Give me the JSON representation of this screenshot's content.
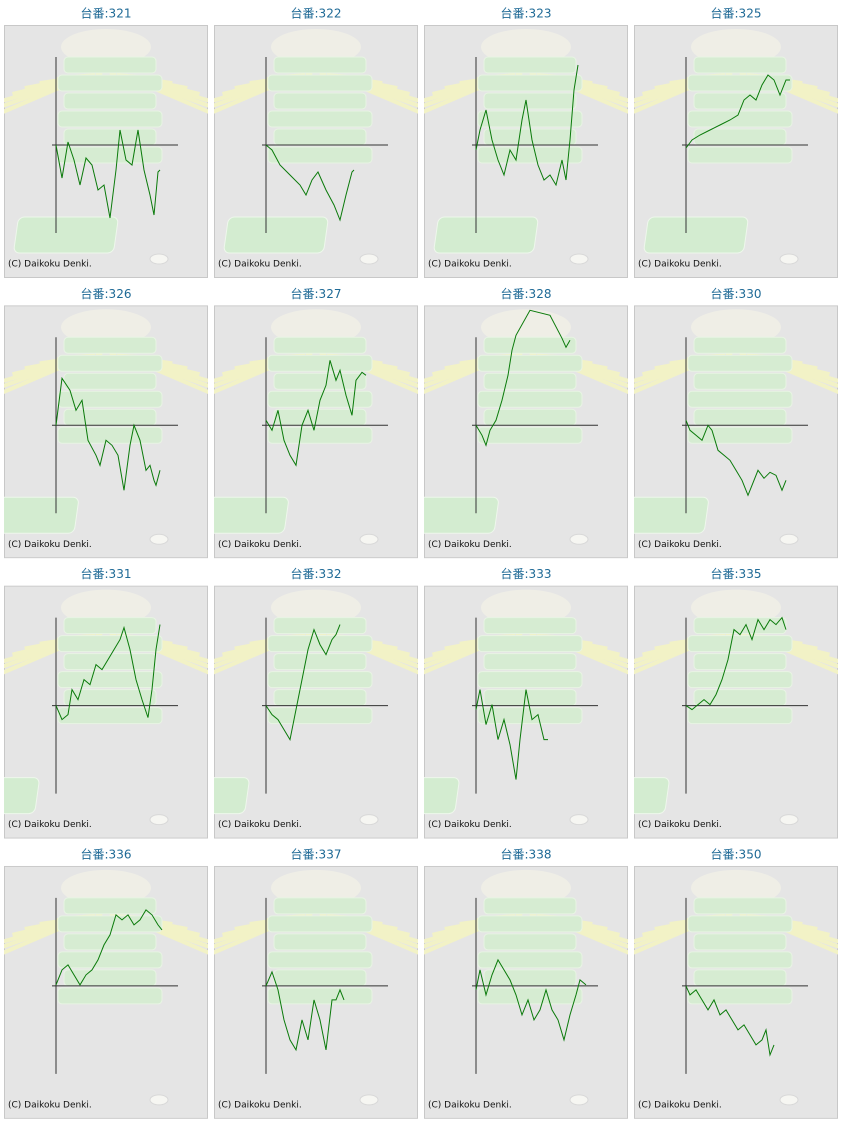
{
  "chart_data": [
    {
      "type": "line",
      "title": "台番:321",
      "note": "(C) Daikoku Denki.",
      "color": "#0a7a0a",
      "xlim": [
        0,
        122
      ],
      "ylim": [
        -88,
        88
      ],
      "x": [
        0,
        6,
        12,
        18,
        24,
        30,
        36,
        42,
        48,
        54,
        60,
        64,
        70,
        76,
        82,
        88,
        94,
        98,
        102,
        104
      ],
      "values": [
        0,
        -33,
        3,
        -15,
        -40,
        -13,
        -20,
        -45,
        -40,
        -73,
        -25,
        15,
        -15,
        -20,
        15,
        -25,
        -50,
        -70,
        -27,
        -25
      ]
    },
    {
      "type": "line",
      "title": "台番:322",
      "note": "(C) Daikoku Denki.",
      "color": "#0a7a0a",
      "xlim": [
        0,
        122
      ],
      "ylim": [
        -88,
        88
      ],
      "x": [
        0,
        6,
        14,
        24,
        34,
        40,
        46,
        52,
        60,
        68,
        74,
        80,
        86,
        88
      ],
      "values": [
        0,
        -5,
        -20,
        -30,
        -40,
        -50,
        -35,
        -27,
        -45,
        -60,
        -75,
        -50,
        -27,
        -25
      ]
    },
    {
      "type": "line",
      "title": "台番:323",
      "note": "(C) Daikoku Denki.",
      "color": "#0a7a0a",
      "xlim": [
        0,
        122
      ],
      "ylim": [
        -88,
        88
      ],
      "x": [
        0,
        4,
        10,
        16,
        22,
        28,
        34,
        40,
        46,
        50,
        56,
        62,
        68,
        74,
        80,
        86,
        90,
        94,
        98,
        102
      ],
      "values": [
        -5,
        15,
        35,
        5,
        -15,
        -30,
        -5,
        -15,
        25,
        45,
        5,
        -20,
        -35,
        -30,
        -40,
        -15,
        -35,
        5,
        55,
        80
      ]
    },
    {
      "type": "line",
      "title": "台番:325",
      "note": "(C) Daikoku Denki.",
      "color": "#0a7a0a",
      "xlim": [
        0,
        122
      ],
      "ylim": [
        -88,
        88
      ],
      "x": [
        0,
        6,
        14,
        24,
        34,
        44,
        52,
        58,
        64,
        70,
        76,
        82,
        88,
        94,
        100,
        104
      ],
      "values": [
        -3,
        5,
        10,
        15,
        20,
        25,
        30,
        45,
        50,
        45,
        60,
        70,
        65,
        50,
        65,
        65
      ]
    },
    {
      "type": "line",
      "title": "台番:326",
      "note": "(C) Daikoku Denki.",
      "color": "#0a7a0a",
      "xlim": [
        0,
        122
      ],
      "ylim": [
        -88,
        88
      ],
      "x": [
        0,
        6,
        14,
        20,
        26,
        32,
        40,
        44,
        50,
        56,
        62,
        68,
        74,
        78,
        84,
        90,
        94,
        98,
        100,
        104
      ],
      "values": [
        0,
        47,
        35,
        15,
        25,
        -15,
        -30,
        -40,
        -15,
        -20,
        -30,
        -65,
        -20,
        0,
        -15,
        -45,
        -40,
        -55,
        -60,
        -45
      ]
    },
    {
      "type": "line",
      "title": "台番:327",
      "note": "(C) Daikoku Denki.",
      "color": "#0a7a0a",
      "xlim": [
        0,
        122
      ],
      "ylim": [
        -88,
        88
      ],
      "x": [
        0,
        6,
        12,
        18,
        24,
        30,
        36,
        42,
        48,
        54,
        60,
        64,
        70,
        74,
        80,
        86,
        90,
        96,
        100
      ],
      "values": [
        5,
        -5,
        15,
        -15,
        -30,
        -40,
        0,
        15,
        -5,
        25,
        40,
        65,
        45,
        55,
        30,
        10,
        45,
        53,
        50
      ]
    },
    {
      "type": "line",
      "title": "台番:328",
      "note": "(C) Daikoku Denki.",
      "color": "#0a7a0a",
      "xlim": [
        0,
        122
      ],
      "ylim": [
        -88,
        88
      ],
      "x": [
        0,
        6,
        10,
        14,
        20,
        26,
        32,
        36,
        40,
        54,
        74,
        86,
        90,
        94
      ],
      "values": [
        0,
        -10,
        -20,
        -5,
        5,
        25,
        50,
        75,
        90,
        115,
        110,
        87,
        78,
        85
      ]
    },
    {
      "type": "line",
      "title": "台番:330",
      "note": "(C) Daikoku Denki.",
      "color": "#0a7a0a",
      "xlim": [
        0,
        122
      ],
      "ylim": [
        -88,
        88
      ],
      "x": [
        0,
        4,
        10,
        16,
        22,
        26,
        32,
        38,
        44,
        50,
        56,
        62,
        66,
        72,
        78,
        84,
        90,
        96,
        100
      ],
      "values": [
        5,
        -5,
        -10,
        -15,
        0,
        -5,
        -25,
        -30,
        -35,
        -45,
        -55,
        -70,
        -60,
        -45,
        -53,
        -47,
        -50,
        -65,
        -55
      ]
    },
    {
      "type": "line",
      "title": "台番:331",
      "note": "(C) Daikoku Denki.",
      "color": "#0a7a0a",
      "xlim": [
        0,
        122
      ],
      "ylim": [
        -88,
        88
      ],
      "x": [
        0,
        6,
        12,
        16,
        22,
        28,
        34,
        40,
        46,
        52,
        58,
        64,
        68,
        74,
        80,
        86,
        92,
        96,
        100,
        104
      ],
      "values": [
        0,
        -14,
        -9,
        16,
        6,
        26,
        21,
        41,
        36,
        46,
        56,
        66,
        78,
        56,
        26,
        6,
        -12,
        16,
        56,
        81
      ]
    },
    {
      "type": "line",
      "title": "台番:332",
      "note": "(C) Daikoku Denki.",
      "color": "#0a7a0a",
      "xlim": [
        0,
        122
      ],
      "ylim": [
        -88,
        88
      ],
      "x": [
        0,
        6,
        12,
        18,
        24,
        30,
        36,
        42,
        48,
        54,
        60,
        66,
        70,
        74
      ],
      "values": [
        0,
        -9,
        -14,
        -24,
        -34,
        -4,
        26,
        56,
        76,
        61,
        51,
        66,
        71,
        81
      ]
    },
    {
      "type": "line",
      "title": "台番:333",
      "note": "(C) Daikoku Denki.",
      "color": "#0a7a0a",
      "xlim": [
        0,
        122
      ],
      "ylim": [
        -88,
        88
      ],
      "x": [
        0,
        4,
        10,
        16,
        22,
        28,
        34,
        40,
        44,
        50,
        56,
        62,
        68,
        72
      ],
      "values": [
        -4,
        16,
        -19,
        1,
        -34,
        -14,
        -39,
        -74,
        -34,
        16,
        -14,
        -9,
        -34,
        -34
      ]
    },
    {
      "type": "line",
      "title": "台番:335",
      "note": "(C) Daikoku Denki.",
      "color": "#0a7a0a",
      "xlim": [
        0,
        122
      ],
      "ylim": [
        -88,
        88
      ],
      "x": [
        0,
        6,
        12,
        18,
        24,
        30,
        36,
        42,
        48,
        54,
        60,
        66,
        72,
        78,
        84,
        90,
        96,
        100
      ],
      "values": [
        0,
        -4,
        1,
        6,
        1,
        11,
        26,
        46,
        76,
        71,
        81,
        66,
        86,
        76,
        86,
        81,
        88,
        76
      ]
    },
    {
      "type": "line",
      "title": "台番:336",
      "note": "(C) Daikoku Denki.",
      "color": "#0a7a0a",
      "xlim": [
        0,
        122
      ],
      "ylim": [
        -88,
        88
      ],
      "x": [
        0,
        6,
        12,
        18,
        24,
        30,
        36,
        42,
        48,
        54,
        60,
        66,
        72,
        78,
        84,
        90,
        96,
        102,
        106
      ],
      "values": [
        1,
        16,
        21,
        11,
        1,
        11,
        16,
        26,
        41,
        51,
        71,
        66,
        71,
        61,
        66,
        76,
        71,
        61,
        56
      ]
    },
    {
      "type": "line",
      "title": "台番:337",
      "note": "(C) Daikoku Denki.",
      "color": "#0a7a0a",
      "xlim": [
        0,
        122
      ],
      "ylim": [
        -88,
        88
      ],
      "x": [
        0,
        6,
        12,
        18,
        24,
        30,
        36,
        42,
        48,
        54,
        60,
        66,
        70,
        74,
        78
      ],
      "values": [
        0,
        14,
        -4,
        -34,
        -54,
        -64,
        -34,
        -54,
        -14,
        -34,
        -64,
        -14,
        -14,
        -4,
        -14
      ]
    },
    {
      "type": "line",
      "title": "台番:338",
      "note": "(C) Daikoku Denki.",
      "color": "#0a7a0a",
      "xlim": [
        0,
        122
      ],
      "ylim": [
        -88,
        88
      ],
      "x": [
        0,
        4,
        10,
        16,
        22,
        28,
        34,
        40,
        46,
        52,
        58,
        64,
        70,
        76,
        82,
        88,
        94,
        100,
        104,
        110
      ],
      "values": [
        -4,
        16,
        -9,
        11,
        26,
        16,
        6,
        -9,
        -29,
        -14,
        -34,
        -24,
        -4,
        -24,
        -34,
        -54,
        -29,
        -9,
        6,
        1
      ]
    },
    {
      "type": "line",
      "title": "台番:350",
      "note": "(C) Daikoku Denki.",
      "color": "#0a7a0a",
      "xlim": [
        0,
        122
      ],
      "ylim": [
        -88,
        88
      ],
      "x": [
        0,
        4,
        10,
        16,
        22,
        28,
        34,
        40,
        46,
        52,
        58,
        64,
        70,
        76,
        80,
        84,
        88
      ],
      "values": [
        0,
        -9,
        -4,
        -14,
        -24,
        -14,
        -29,
        -24,
        -34,
        -44,
        -39,
        -49,
        -59,
        -54,
        -44,
        -69,
        -59
      ]
    }
  ]
}
